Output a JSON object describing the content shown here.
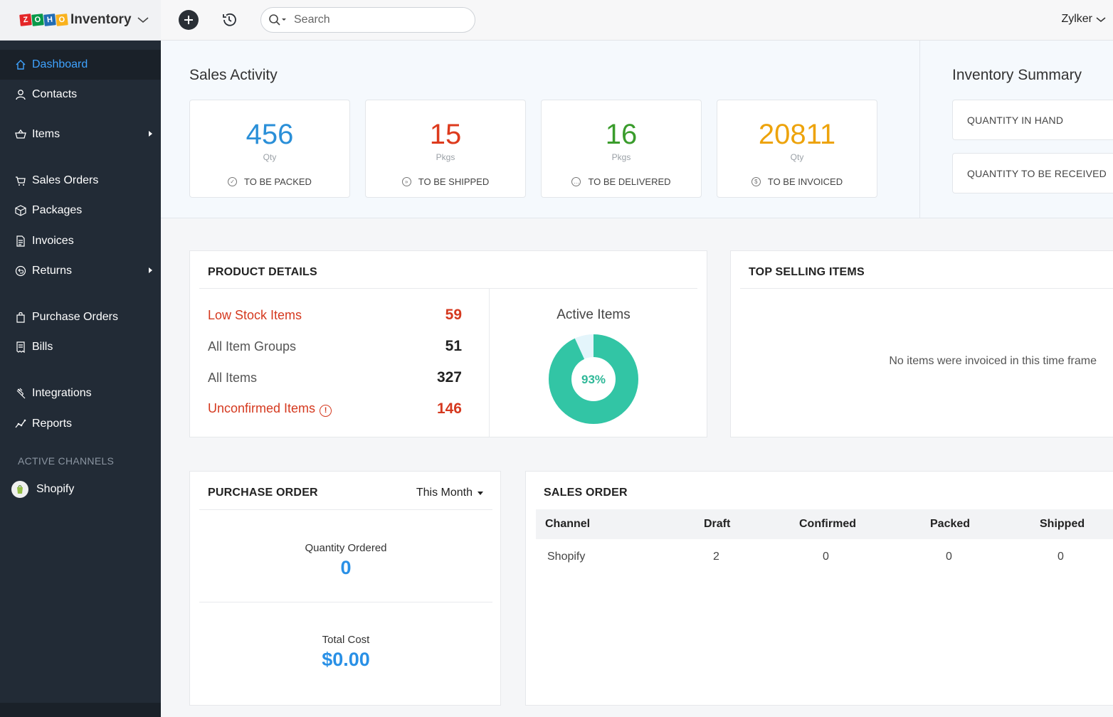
{
  "app": {
    "brand_letters": [
      "Z",
      "O",
      "H",
      "O"
    ],
    "brand_colors": [
      "#e42527",
      "#089949",
      "#226db4",
      "#f9b21d"
    ],
    "name": "Inventory",
    "org_name": "Zylker"
  },
  "search": {
    "placeholder": "Search"
  },
  "sidebar": {
    "items": [
      {
        "label": "Dashboard",
        "icon": "home-icon"
      },
      {
        "label": "Contacts",
        "icon": "user-icon"
      },
      {
        "label": "Items",
        "icon": "basket-icon"
      },
      {
        "label": "Sales Orders",
        "icon": "cart-icon"
      },
      {
        "label": "Packages",
        "icon": "package-icon"
      },
      {
        "label": "Invoices",
        "icon": "invoice-icon"
      },
      {
        "label": "Returns",
        "icon": "return-icon"
      },
      {
        "label": "Purchase Orders",
        "icon": "bag-icon"
      },
      {
        "label": "Bills",
        "icon": "bill-icon"
      },
      {
        "label": "Integrations",
        "icon": "plug-icon"
      },
      {
        "label": "Reports",
        "icon": "chart-line-icon"
      }
    ],
    "channels_label": "ACTIVE CHANNELS",
    "channels": [
      {
        "label": "Shopify"
      }
    ]
  },
  "sales_activity": {
    "title": "Sales Activity",
    "cards": [
      {
        "value": "456",
        "unit": "Qty",
        "label": "TO BE PACKED",
        "color": "#2a8fd8"
      },
      {
        "value": "15",
        "unit": "Pkgs",
        "label": "TO BE SHIPPED",
        "color": "#dd3a1d"
      },
      {
        "value": "16",
        "unit": "Pkgs",
        "label": "TO BE DELIVERED",
        "color": "#3a9c2c"
      },
      {
        "value": "20811",
        "unit": "Qty",
        "label": "TO BE INVOICED",
        "color": "#eda30b"
      }
    ]
  },
  "inventory_summary": {
    "title": "Inventory Summary",
    "rows": [
      {
        "label": "QUANTITY IN HAND"
      },
      {
        "label": "QUANTITY TO BE RECEIVED"
      }
    ]
  },
  "product_details": {
    "title": "PRODUCT DETAILS",
    "rows": [
      {
        "label": "Low Stock Items",
        "value": "59"
      },
      {
        "label": "All Item Groups",
        "value": "51"
      },
      {
        "label": "All Items",
        "value": "327"
      },
      {
        "label": "Unconfirmed Items",
        "value": "146"
      }
    ],
    "active_items": {
      "title": "Active Items",
      "percent_label": "93%",
      "percent": 93,
      "color": "#32c5a5",
      "remainder_color": "#e4f5fb"
    }
  },
  "top_selling": {
    "title": "TOP SELLING ITEMS",
    "empty_message": "No items were invoiced in this time frame"
  },
  "purchase_order": {
    "title": "PURCHASE ORDER",
    "filter": "This Month",
    "quantity_label": "Quantity Ordered",
    "quantity_value": "0",
    "cost_label": "Total Cost",
    "cost_value": "$0.00"
  },
  "sales_order": {
    "title": "SALES ORDER",
    "columns": [
      "Channel",
      "Draft",
      "Confirmed",
      "Packed",
      "Shipped"
    ],
    "rows": [
      [
        "Shopify",
        "2",
        "0",
        "0",
        "0"
      ]
    ]
  }
}
